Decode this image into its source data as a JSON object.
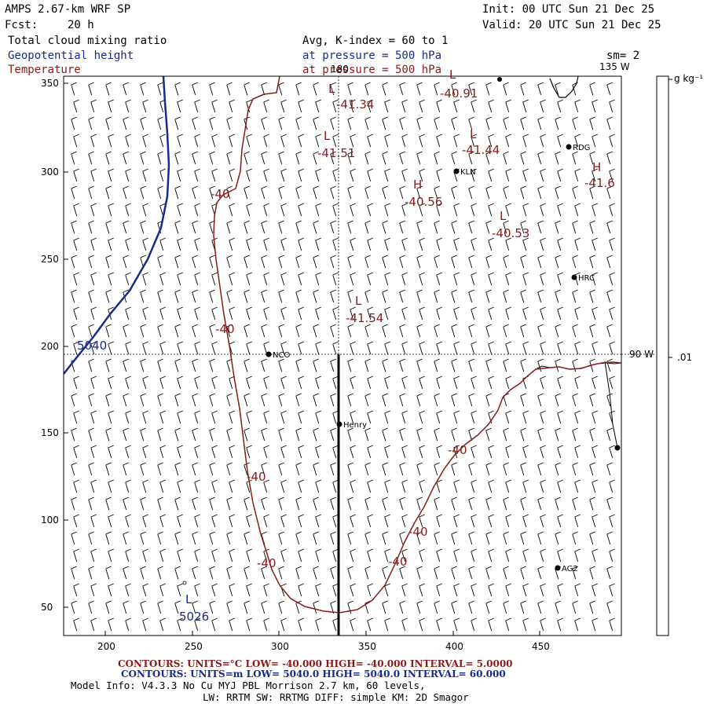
{
  "header": {
    "model": "AMPS 2.67-km WRF SP",
    "init": "Init: 00 UTC Sun 21 Dec 25",
    "fcst_label": "Fcst:",
    "fcst_value": "20 h",
    "valid": "Valid: 20 UTC Sun 21 Dec 25",
    "field1": "Total cloud mixing ratio",
    "field2": "Geopotential height",
    "field3": "Temperature",
    "avg": "Avg, K-index =  60 to   1",
    "pressure1": "at pressure =  500 hPa",
    "pressure2": "at pressure =  500 hPa",
    "sm": "sm= 2"
  },
  "map": {
    "lon_top_label": "180",
    "lon_tr_label": "135 W",
    "lon_right_label": "90 W",
    "x_ticks": [
      "200",
      "250",
      "300",
      "350",
      "400",
      "450"
    ],
    "y_ticks": [
      "350",
      "300",
      "250",
      "200",
      "150",
      "100",
      "50"
    ],
    "stations": [
      {
        "name": "NCO"
      },
      {
        "name": "KLN"
      },
      {
        "name": "RDG"
      },
      {
        "name": "HRC"
      },
      {
        "name": "Henry"
      },
      {
        "name": "AG2"
      }
    ],
    "temp_labels": [
      "-41.34",
      "-40.91",
      "-41.51",
      "-41.44",
      "-41.6",
      "-40.56",
      "-40.53",
      "-41.54",
      "-40",
      "-40",
      "-40",
      "-40",
      "-40",
      "-40",
      "-40"
    ],
    "extrema_marks": [
      "L",
      "L",
      "L",
      "L",
      "H",
      "H",
      "L",
      "L"
    ],
    "height_labels": [
      "5040",
      "5026"
    ]
  },
  "colorbar": {
    "unit": "g kg⁻¹",
    "value": ".01"
  },
  "footer": {
    "contours_red": "CONTOURS:  UNITS=°C  LOW= -40.000       HIGH= -40.000       INTERVAL=    5.0000",
    "contours_blue": "CONTOURS:  UNITS=m  LOW=  5040.0        HIGH=  5040.0        INTERVAL=    60.000",
    "model_info": "Model Info: V4.3.3    No Cu    MYJ PBL  Morrison            2.7 km,  60 levels,",
    "model_info2": "LW: RRTM SW: RRTMG    DIFF: simple KM: 2D Smagor"
  },
  "colors": {
    "temperature": "#8a1a1a",
    "height": "#1a2a8a",
    "axis": "#000000"
  }
}
